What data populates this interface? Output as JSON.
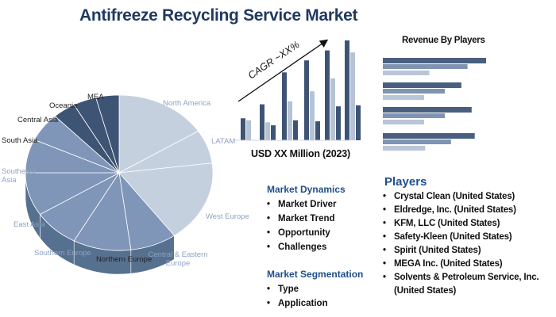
{
  "title": "Antifreeze Recycling Service Market",
  "pie": {
    "labels": [
      "North America",
      "LATAM",
      "West Europe",
      "Central & Eastern Europe",
      "Northern Europe",
      "Southern Europe",
      "East Asia",
      "Southeast Asia",
      "South Asia",
      "Central Asia",
      "Oceania",
      "MEA"
    ],
    "colors": {
      "light": "#c5d0df",
      "mid": "#7f96b8",
      "dark": "#3e5474",
      "side": "#2f4563"
    }
  },
  "growth": {
    "cagr_label": "CAGR ~XX%",
    "caption": "USD XX Million (2023)"
  },
  "revenue": {
    "title": "Revenue By Players"
  },
  "dynamics": {
    "heading": "Market Dynamics",
    "items": [
      "Market Driver",
      "Market Trend",
      "Opportunity",
      "Challenges"
    ]
  },
  "segmentation": {
    "heading": "Market Segmentation",
    "items": [
      "Type",
      "Application"
    ]
  },
  "players": {
    "heading": "Players",
    "items": [
      "Crystal Clean (United States)",
      "Eldredge, Inc. (United States)",
      "KFM, LLC (United States)",
      "Safety-Kleen (United States)",
      "Spirit (United States)",
      "MEGA Inc. (United States)",
      "Solvents & Petroleum Service, Inc. (United States)"
    ]
  },
  "chart_data": [
    {
      "type": "pie",
      "categories": [
        "North America",
        "LATAM",
        "West Europe",
        "Central & Eastern Europe",
        "Northern Europe",
        "Southern Europe",
        "East Asia",
        "Southeast Asia",
        "South Asia",
        "Central Asia",
        "Oceania",
        "MEA"
      ],
      "values": [
        16,
        7,
        17,
        8,
        10,
        8,
        9,
        7,
        6,
        4,
        4,
        4
      ]
    },
    {
      "type": "bar",
      "categories": [
        "1",
        "2",
        "3",
        "4",
        "5",
        "6"
      ],
      "series": [
        {
          "values": [
            2.2,
            3.6,
            6.8,
            8.0,
            9.0,
            10.0
          ]
        },
        {
          "values": [
            2.0,
            1.8,
            3.9,
            4.9,
            6.2,
            8.8
          ]
        },
        {
          "values": [
            0.0,
            1.5,
            2.0,
            1.9,
            3.4,
            3.5
          ]
        }
      ],
      "ylim": [
        0,
        10
      ]
    },
    {
      "type": "bar",
      "orientation": "horizontal",
      "categories": [
        "1",
        "2",
        "3",
        "4"
      ],
      "series": [
        {
          "values": [
            100,
            76,
            86,
            89
          ]
        },
        {
          "values": [
            82,
            60,
            60,
            66
          ]
        },
        {
          "values": [
            45,
            40,
            40,
            41
          ]
        }
      ],
      "xlim": [
        0,
        100
      ]
    }
  ]
}
